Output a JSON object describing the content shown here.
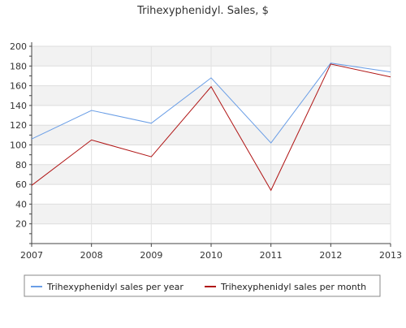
{
  "chart_data": {
    "type": "line",
    "title": "Trihexyphenidyl. Sales, $",
    "x": [
      2007,
      2008,
      2009,
      2010,
      2011,
      2012,
      2013
    ],
    "xlabels": [
      "2007",
      "2008",
      "2009",
      "2010",
      "2011",
      "2012",
      "2013"
    ],
    "ylim": [
      0,
      200
    ],
    "yticks": [
      20,
      40,
      60,
      80,
      100,
      120,
      140,
      160,
      180,
      200
    ],
    "grid": true,
    "legend_position": "bottom",
    "series": [
      {
        "name": "Trihexyphenidyl sales per year",
        "color": "#6a9ee6",
        "values": [
          106,
          135,
          122,
          168,
          102,
          183,
          174
        ]
      },
      {
        "name": "Trihexyphenidyl sales per month",
        "color": "#b01515",
        "values": [
          59,
          105,
          88,
          159,
          54,
          182,
          169
        ]
      }
    ]
  }
}
